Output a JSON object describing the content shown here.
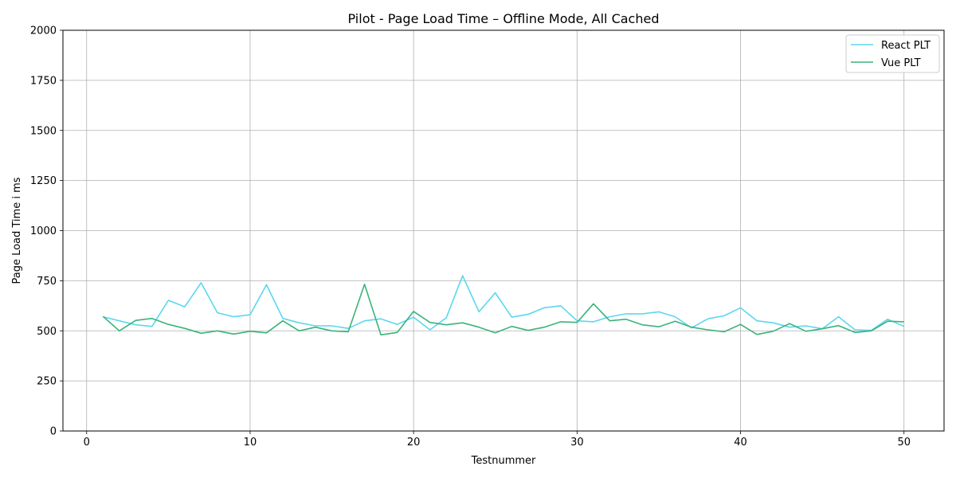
{
  "chart_data": {
    "type": "line",
    "title": "Pilot - Page Load Time – Offline Mode, All Cached",
    "xlabel": "Testnummer",
    "ylabel": "Page Load Time i ms",
    "xlim": [
      -1.45,
      52.45
    ],
    "ylim": [
      0,
      2000
    ],
    "xticks": [
      0,
      10,
      20,
      30,
      40,
      50
    ],
    "yticks": [
      0,
      250,
      500,
      750,
      1000,
      1250,
      1500,
      1750,
      2000
    ],
    "grid": true,
    "legend_position": "top-right",
    "x": [
      1,
      2,
      3,
      4,
      5,
      6,
      7,
      8,
      9,
      10,
      11,
      12,
      13,
      14,
      15,
      16,
      17,
      18,
      19,
      20,
      21,
      22,
      23,
      24,
      25,
      26,
      27,
      28,
      29,
      30,
      31,
      32,
      33,
      34,
      35,
      36,
      37,
      38,
      39,
      40,
      41,
      42,
      43,
      44,
      45,
      46,
      47,
      48,
      49,
      50
    ],
    "series": [
      {
        "name": "React PLT",
        "color": "#5bd7ef",
        "values": [
          570,
          550,
          530,
          522,
          652,
          620,
          740,
          590,
          570,
          580,
          730,
          562,
          540,
          525,
          525,
          512,
          550,
          560,
          532,
          568,
          505,
          565,
          775,
          595,
          690,
          568,
          582,
          615,
          625,
          550,
          545,
          570,
          585,
          585,
          595,
          570,
          515,
          560,
          575,
          615,
          550,
          540,
          518,
          525,
          510,
          570,
          505,
          502,
          558,
          522
        ]
      },
      {
        "name": "Vue PLT",
        "color": "#3cb37a",
        "values": [
          572,
          500,
          552,
          562,
          532,
          512,
          488,
          500,
          484,
          498,
          490,
          550,
          500,
          518,
          500,
          495,
          732,
          480,
          492,
          597,
          542,
          530,
          540,
          518,
          490,
          522,
          502,
          518,
          545,
          542,
          635,
          550,
          558,
          530,
          520,
          548,
          518,
          505,
          495,
          532,
          482,
          498,
          536,
          498,
          510,
          526,
          492,
          500,
          548,
          545
        ]
      }
    ]
  }
}
